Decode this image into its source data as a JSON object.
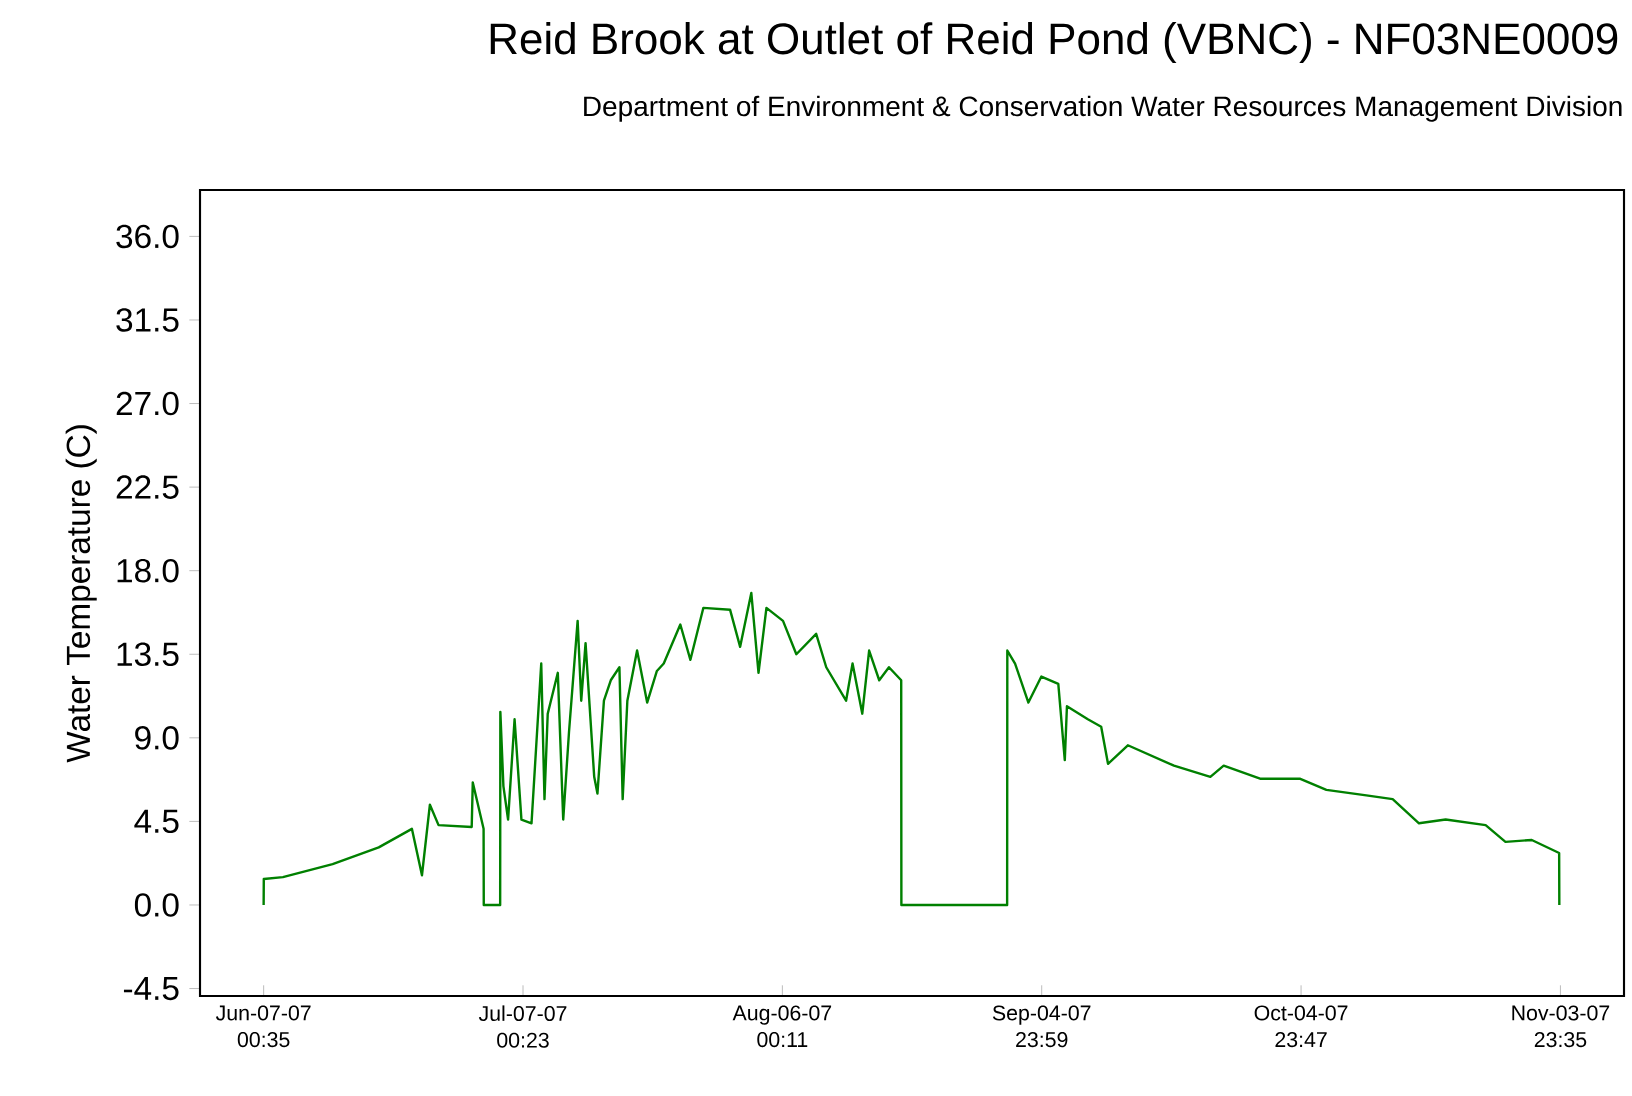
{
  "chart_data": {
    "type": "line",
    "title": "Reid Brook at Outlet of Reid Pond  (VBNC) - NF03NE0009",
    "subtitle": "Department of Environment & Conservation Water Resources Management Division",
    "ylabel": "Water Temperature (C)",
    "xlim": [
      "2007-05-30T16:00",
      "2007-11-11T08:00"
    ],
    "ylim": [
      -4.9,
      38.5
    ],
    "xticks": [
      {
        "value": "2007-06-07T00:35",
        "label": "Jun-07-07 00:35"
      },
      {
        "value": "2007-07-07T00:23",
        "label": "Jul-07-07 00:23"
      },
      {
        "value": "2007-08-06T00:11",
        "label": "Aug-06-07 00:11"
      },
      {
        "value": "2007-09-04T23:59",
        "label": "Sep-04-07 23:59"
      },
      {
        "value": "2007-10-04T23:47",
        "label": "Oct-04-07 23:47"
      },
      {
        "value": "2007-11-03T23:35",
        "label": "Nov-03-07 23:35"
      }
    ],
    "yticks": [
      {
        "value": -4.5,
        "label": "-4.5"
      },
      {
        "value": 0,
        "label": "0.0"
      },
      {
        "value": 4.5,
        "label": "4.5"
      },
      {
        "value": 9,
        "label": "9.0"
      },
      {
        "value": 13.5,
        "label": "13.5"
      },
      {
        "value": 18,
        "label": "18.0"
      },
      {
        "value": 22.5,
        "label": "22.5"
      },
      {
        "value": 27,
        "label": "27.0"
      },
      {
        "value": 31.5,
        "label": "31.5"
      },
      {
        "value": 36,
        "label": "36.0"
      }
    ],
    "grid": false,
    "legend": false,
    "marker": "none",
    "line_style": "solid",
    "x": [
      "2007-06-07T00:35",
      "2007-06-07T01:00",
      "2007-06-09T06:00",
      "2007-06-15T00:00",
      "2007-06-20T08:00",
      "2007-06-24T04:00",
      "2007-06-25T08:00",
      "2007-06-26T06:00",
      "2007-06-27T06:00",
      "2007-07-01T02:00",
      "2007-07-01T05:00",
      "2007-07-02T11:00",
      "2007-07-02T11:30",
      "2007-07-04T09:00",
      "2007-07-04T09:30",
      "2007-07-04T18:00",
      "2007-07-05T07:00",
      "2007-07-06T01:00",
      "2007-07-06T20:00",
      "2007-07-08T00:00",
      "2007-07-09T03:00",
      "2007-07-09T12:00",
      "2007-07-09T21:00",
      "2007-07-11T01:00",
      "2007-07-11T16:00",
      "2007-07-12T08:00",
      "2007-07-13T08:00",
      "2007-07-13T18:00",
      "2007-07-14T06:00",
      "2007-07-15T06:00",
      "2007-07-15T15:00",
      "2007-07-16T09:00",
      "2007-07-17T04:00",
      "2007-07-18T04:00",
      "2007-07-18T13:00",
      "2007-07-19T02:00",
      "2007-07-20T05:00",
      "2007-07-21T09:00",
      "2007-07-22T12:00",
      "2007-07-23T07:00",
      "2007-07-25T05:00",
      "2007-07-26T09:00",
      "2007-07-27T21:00",
      "2007-07-30T23:00",
      "2007-08-01T03:00",
      "2007-08-02T10:00",
      "2007-08-03T06:00",
      "2007-08-04T04:00",
      "2007-08-06T02:00",
      "2007-08-07T15:00",
      "2007-08-09T22:00",
      "2007-08-11T02:00",
      "2007-08-13T09:00",
      "2007-08-14T03:00",
      "2007-08-15T06:00",
      "2007-08-16T01:00",
      "2007-08-17T05:00",
      "2007-08-18T08:00",
      "2007-08-19T18:00",
      "2007-08-19T18:30",
      "2007-09-01T00:00",
      "2007-09-01T00:30",
      "2007-09-01T22:00",
      "2007-09-03T11:00",
      "2007-09-04T23:00",
      "2007-09-06T22:00",
      "2007-09-07T16:00",
      "2007-09-07T22:00",
      "2007-09-10T08:00",
      "2007-09-11T21:00",
      "2007-09-12T16:00",
      "2007-09-14T23:00",
      "2007-09-20T07:00",
      "2007-09-24T12:00",
      "2007-09-26T01:00",
      "2007-09-30T06:00",
      "2007-10-04T20:00",
      "2007-10-07T22:00",
      "2007-10-12T13:00",
      "2007-10-15T14:00",
      "2007-10-18T15:00",
      "2007-10-21T17:00",
      "2007-10-26T08:00",
      "2007-10-28T15:00",
      "2007-10-31T16:00",
      "2007-11-03T20:00",
      "2007-11-03T20:30"
    ],
    "series": [
      {
        "color": "#008000",
        "values": [
          0,
          1.4,
          1.5,
          2.2,
          3.1,
          4.1,
          1.6,
          5.4,
          4.3,
          4.2,
          6.6,
          4.1,
          0,
          0,
          10.4,
          6.4,
          4.6,
          10.0,
          4.6,
          4.4,
          13.0,
          5.7,
          10.3,
          12.5,
          4.6,
          9.3,
          15.3,
          11.0,
          14.1,
          6.9,
          6.0,
          11.0,
          12.1,
          12.8,
          5.7,
          11.0,
          13.7,
          10.9,
          12.6,
          13.0,
          15.1,
          13.2,
          16.0,
          15.9,
          13.9,
          16.8,
          12.5,
          16.0,
          15.3,
          13.5,
          14.6,
          12.8,
          11.0,
          13.0,
          10.3,
          13.7,
          12.1,
          12.8,
          12.1,
          0,
          0,
          13.7,
          13.0,
          10.9,
          12.3,
          11.9,
          7.8,
          10.7,
          10.0,
          9.6,
          7.6,
          8.6,
          7.5,
          6.9,
          7.5,
          6.8,
          6.8,
          6.2,
          5.9,
          5.7,
          4.4,
          4.6,
          4.3,
          3.4,
          3.5,
          2.8,
          0
        ]
      }
    ]
  }
}
